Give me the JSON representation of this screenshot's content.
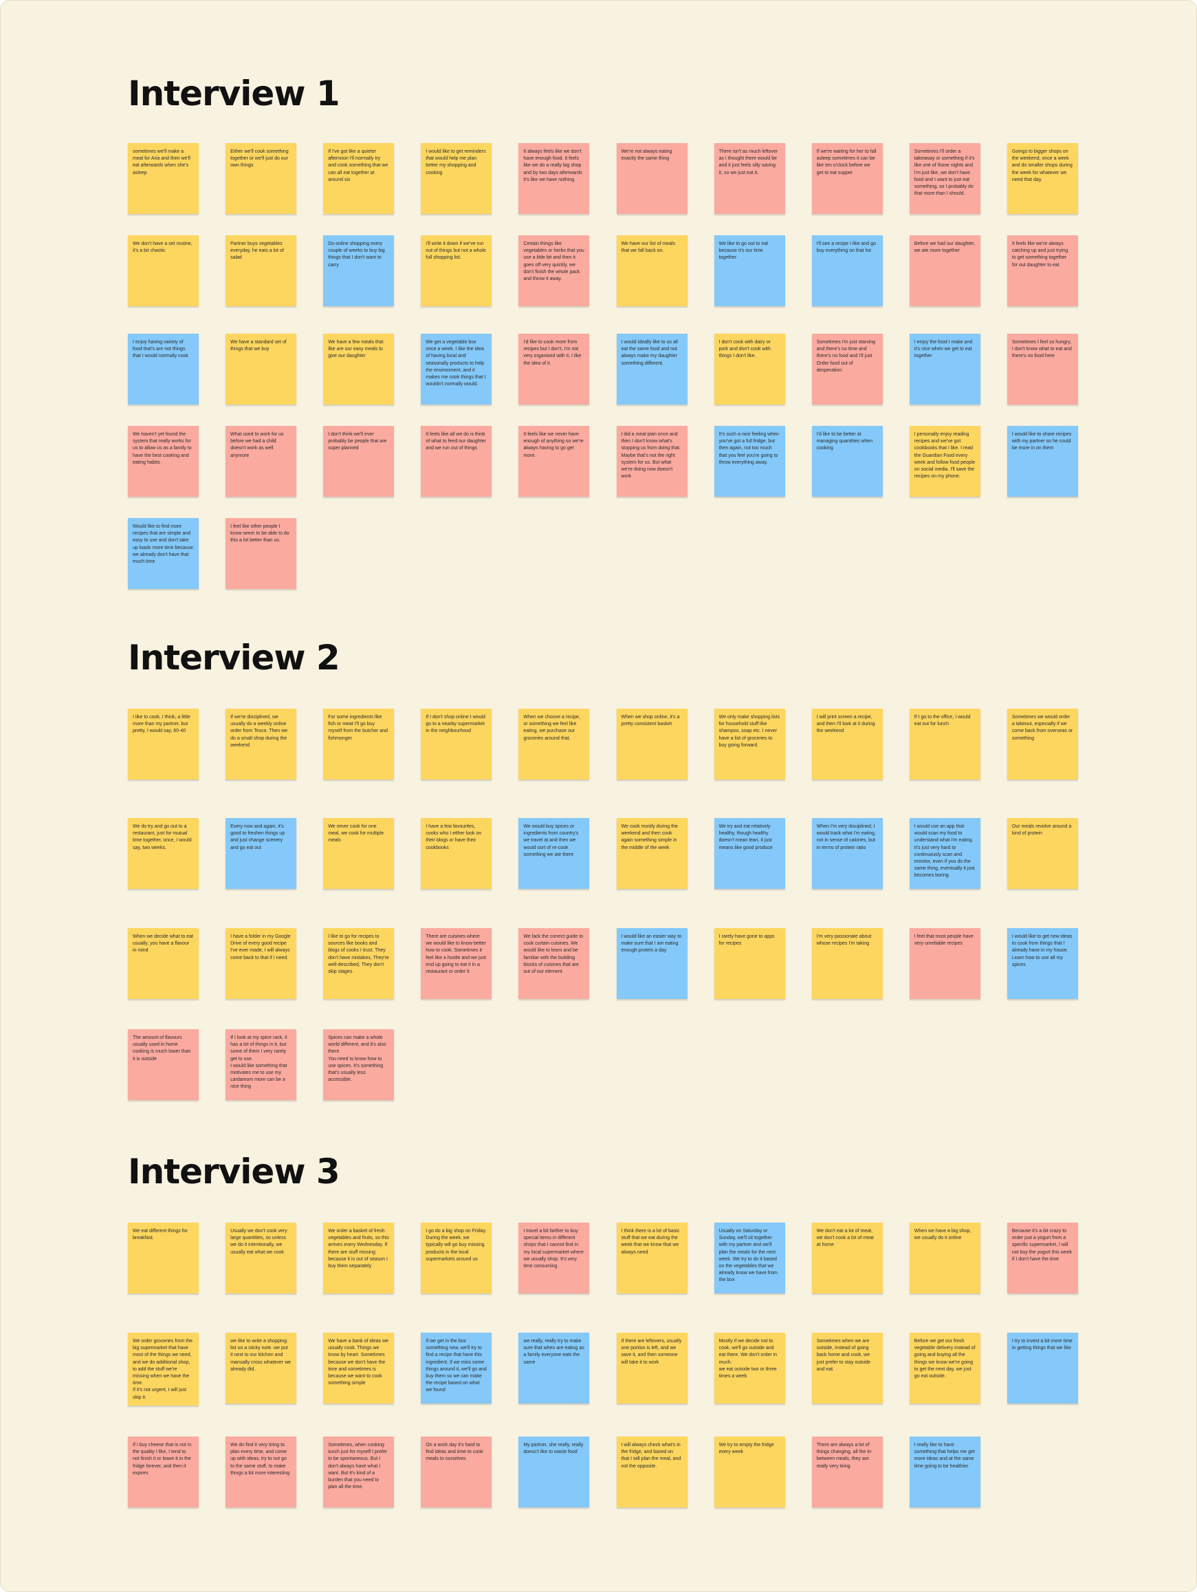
{
  "colors": {
    "board_background": "#f8f2e0",
    "yellow_note": "#fdd65f",
    "pink_note": "#fbaaa0",
    "blue_note": "#84c9f9"
  },
  "sections": [
    {
      "title": "Interview 1",
      "notes": [
        {
          "color": "yellow",
          "text": "sometimes we'll make a meal for Aria and then we'll eat afterwards when she's asleep"
        },
        {
          "color": "yellow",
          "text": "Either we'll cook something together or we'll just do our own things"
        },
        {
          "color": "yellow",
          "text": "If I've got like a quieter afternoon I'll normally try and cook something that we can all eat together at around six"
        },
        {
          "color": "yellow",
          "text": "I would like to get reminders that would help me plan better my shopping and cooking"
        },
        {
          "color": "pink",
          "text": "It always feels like we don't have enough food. It feels like we do a really big shop and by two days afterwards it's like we have nothing"
        },
        {
          "color": "pink",
          "text": "We're not always eating exactly the same thing"
        },
        {
          "color": "pink",
          "text": "There isn't as much leftover as I thought there would be and it just feels silly saving it, so we just eat it."
        },
        {
          "color": "pink",
          "text": "If we're waiting for her to fall asleep sometimes it can be like ten o'clock before we get to eat supper"
        },
        {
          "color": "pink",
          "text": "Sometimes I'll order a takeaway or something if it's like one of those nights and I'm just like, we don't have food and I want to just eat something, so I probably do that more than I should."
        },
        {
          "color": "yellow",
          "text": "Goings to bigger shops on the weekend, once a week and do smaller shops during the week for whatever we need that day."
        },
        {
          "color": "yellow",
          "text": "We don't have a set routine, it's a bit chaotic"
        },
        {
          "color": "yellow",
          "text": "Partner buys vegetables everyday, he eats a lot of salad"
        },
        {
          "color": "blue",
          "text": "Do online shopping every couple of weeks to buy big things that I don't want to carry"
        },
        {
          "color": "yellow",
          "text": "I'll write it down if we've run out of things but not a whole full shopping list."
        },
        {
          "color": "pink",
          "text": "Certain things like vegetables or herbs that you use a little bit and then it goes off very quickly, we don't finish the whole pack and throw it away."
        },
        {
          "color": "yellow",
          "text": "We have our list of meals that we fall back on."
        },
        {
          "color": "blue",
          "text": "We like to go out to eat because it's our time together"
        },
        {
          "color": "blue",
          "text": "I'll see a recipe I like and go buy everything on that list"
        },
        {
          "color": "pink",
          "text": "Before we had our daughter, we ate more together"
        },
        {
          "color": "pink",
          "text": "It feels like we're always catching up and just trying to get something together for out daughter to eat"
        },
        {
          "color": "blue",
          "text": "I enjoy having variety of food that's are not things that I would normally cook"
        },
        {
          "color": "yellow",
          "text": "We have a standard set of things that we buy"
        },
        {
          "color": "yellow",
          "text": "We have a few meals that like are our easy meals to give our daughter"
        },
        {
          "color": "blue",
          "text": "We get a vegetable box once a week. I like the idea of having local and seasonally products to help the environment, and it makes me cook things that I wouldn't normally would."
        },
        {
          "color": "pink",
          "text": "I'd like to cook more from recipes but I don't, I'm not very organised with it. I like the idea of it."
        },
        {
          "color": "blue",
          "text": "I would ideally like to us all eat the same food and not always make my daughter something different."
        },
        {
          "color": "yellow",
          "text": "I don't cook with dairy or pork and don't cook with things I don't like."
        },
        {
          "color": "pink",
          "text": "Sometimes I'm just starving and there's no time and there's no food and I'll just Order food out of desperation"
        },
        {
          "color": "blue",
          "text": "I enjoy the food I make and it's nice when we get to eat together"
        },
        {
          "color": "pink",
          "text": "Sometimes I feel so hungry, I don't know what to eat and there's no food here"
        },
        {
          "color": "pink",
          "text": "We haven't yet found the system that really works for us to allow us as a family to have the best cooking and eating habits"
        },
        {
          "color": "pink",
          "text": "What used to work for us before we had a child doesn't work as well anymore"
        },
        {
          "color": "pink",
          "text": "I don't think we'll ever probably be people that are super planned"
        },
        {
          "color": "pink",
          "text": "It feels like all we do is think of what to feed our daughter and we run out of things"
        },
        {
          "color": "pink",
          "text": "It feels like we never have enough of anything so we're always having to go get more."
        },
        {
          "color": "pink",
          "text": "I did a meal plan once and then I don't know what's stopping us from doing that. Maybe that's not the right system for us. But what we're doing now doesn't work"
        },
        {
          "color": "blue",
          "text": "It's such a nice feeling when you've got a full fridge, but then again, not too much that you feel you're going to throw everything away."
        },
        {
          "color": "blue",
          "text": "I'd like to be better at managing quantities when cooking"
        },
        {
          "color": "yellow",
          "text": "I personally enjoy reading recipes and we've got cookbooks that I like. I read the Guardian Food every week and follow food people on social media. I'll save the recipes on my phone."
        },
        {
          "color": "blue",
          "text": "I would like to share recipes with my partner so he could be more in on them"
        },
        {
          "color": "blue",
          "text": "Would like to find more recipes that are simple and easy to use and don't take up loads more time because we already don't have that much time"
        },
        {
          "color": "pink",
          "text": "I feel like other people I know seem to be able to do this a lot better than us."
        }
      ]
    },
    {
      "title": "Interview 2",
      "notes": [
        {
          "color": "yellow",
          "text": "I like to cook, I think, a little more than my partner, but pretty, I would say, 60-40"
        },
        {
          "color": "yellow",
          "text": "If we're disciplined, we usually do a weekly online order from Tesco. Then we do a small shop during the weekend"
        },
        {
          "color": "yellow",
          "text": "For some ingredients like fish or meat I'll go buy myself from the butcher and fishmonger"
        },
        {
          "color": "yellow",
          "text": "If I don't shop online I would go to a nearby supermarket in the neighbourhood"
        },
        {
          "color": "yellow",
          "text": "When we choose a recipe, or something we feel like eating, we purchase our groceries around that."
        },
        {
          "color": "yellow",
          "text": "When we shop online, it's a pretty consistent basket"
        },
        {
          "color": "yellow",
          "text": "We only make shopping lists for household stuff like shampoo, soap etc. I never have a list of groceries to buy going forward"
        },
        {
          "color": "yellow",
          "text": "I will print screen a recipe, and then I'll look at it during the weekend"
        },
        {
          "color": "yellow",
          "text": "If I go to the office, I would eat out for lunch"
        },
        {
          "color": "yellow",
          "text": "Sometimes we would order a takeout, especially if we come back from overseas or something"
        },
        {
          "color": "yellow",
          "text": "We do try and go out to a restaurant, just for mutual time together, once, I would say, two weeks."
        },
        {
          "color": "blue",
          "text": "Every now and again, it's good to freshen things up and just change scenery and go eat out"
        },
        {
          "color": "yellow",
          "text": "We never cook for one meal, we cook for multiple meals"
        },
        {
          "color": "yellow",
          "text": "I have a few favourites, cooks who I either look on their blogs or have their cookbooks"
        },
        {
          "color": "blue",
          "text": "We would buy spices or ingredients from country's we travel at and then we would sort of re-cook something we ate there"
        },
        {
          "color": "yellow",
          "text": "We cook mostly during the weekend and then cook again something simple in the middle of the week"
        },
        {
          "color": "blue",
          "text": "We try and eat relatively healthy, though healthy doesn't mean lean, it just means like good produce"
        },
        {
          "color": "blue",
          "text": "When I'm very disciplined, I would track what I'm eating, not in sense of calories, but in terms of protein ratio"
        },
        {
          "color": "blue",
          "text": "I would use an app that would scan my food to understand what I'm eating.\nIt's just very hard to continuously scan and monitor, even if you do the same thing, eventually it just becomes boring."
        },
        {
          "color": "yellow",
          "text": "Our meals revolve around a kind of protein"
        },
        {
          "color": "yellow",
          "text": "When we decide what to eat usually, you have a flavour in mind"
        },
        {
          "color": "yellow",
          "text": "I have a folder in my Google Drive of every good recipe I've ever made, I will always come back to that if I need."
        },
        {
          "color": "yellow",
          "text": "I like to go for recipes to sources like books and blogs of cooks I trust. They don't have mistakes, They're well-described, They don't skip stages."
        },
        {
          "color": "pink",
          "text": "There are cuisines where we would like to know better how to cook. Sometimes it feel like a hustle and we just end up going to eat it in a restaurant or order it"
        },
        {
          "color": "pink",
          "text": "We lack the correct guide to cook curtain cuisines. We would like to learn and be familiar with the building blocks of cuisines that are out of our element"
        },
        {
          "color": "blue",
          "text": "I would like an easier way to make sure that I am eating enough protein a day"
        },
        {
          "color": "yellow",
          "text": "I rarely have gone to apps for recipes"
        },
        {
          "color": "yellow",
          "text": "I'm very passionate about whose recipes I'm taking"
        },
        {
          "color": "pink",
          "text": "I feel that most people have very unreliable recipes"
        },
        {
          "color": "blue",
          "text": "I would like to get new ideas to cook from things that I already have in my house. Learn how to use all my spices"
        },
        {
          "color": "pink",
          "text": "The amount of flavours usually used in home cooking is much lower than it is outside"
        },
        {
          "color": "pink",
          "text": "If I look at my spice rack, it has a lot of things in it, but some of them I very rarely get to use.\nI would like something that motivates me to use my cardamom more can be a nice thing"
        },
        {
          "color": "pink",
          "text": "Spices can make a whole world different, and it's also there.\nYou need to know how to use spices. It's something that's usually less accessible."
        }
      ]
    },
    {
      "title": "Interview 3",
      "notes": [
        {
          "color": "yellow",
          "text": "We eat different things for breakfast."
        },
        {
          "color": "yellow",
          "text": "Usually we don't cook very large quantities, so unless we do it intentionally, we usually eat what we cook"
        },
        {
          "color": "yellow",
          "text": "We order a basket of fresh vegetables and fruits, so this arrives every Wednesday. If there are stuff missing because it is out of season I buy them separately"
        },
        {
          "color": "yellow",
          "text": "I go do a big shop on Friday. During the week, we typically will go buy missing products in the local supermarkets around us"
        },
        {
          "color": "pink",
          "text": "I travel a bit farther to buy special items in different shops that I cannot find in my local supermarket where we usually shop. It's very time consuming"
        },
        {
          "color": "yellow",
          "text": "I think there is a lot of basic stuff that we eat during the week that we know that we always need"
        },
        {
          "color": "blue",
          "text": "Usually on Saturday or Sunday, we'll sit together with my partner and we'll plan the meals for the next week. We try to do it based on the vegetables that we already know we have from the box"
        },
        {
          "color": "yellow",
          "text": "We don't eat a lot of meat, we don't cook a lot of meat at home"
        },
        {
          "color": "yellow",
          "text": "When we have a big shop, we usually do it online"
        },
        {
          "color": "pink",
          "text": "Because it's a bit crazy to order just a yogurt from a specific supermarket, I will not buy the yogurt this week if I don't have the time"
        },
        {
          "color": "yellow",
          "text": "We order groceries from the big supermarket that have most of the things we need, and we do additional shop, to add the stuff we're missing when we have the time.\nIf it's not urgent, I will just skip it."
        },
        {
          "color": "yellow",
          "text": "we like to write a shopping list on a sticky note. we put it next to our kitchen and manually cross whatever we already did."
        },
        {
          "color": "yellow",
          "text": "We have a bank of ideas we usually cook. Things we know by heart. Sometimes because we don't have the time and sometimes is because we want to cook something simple"
        },
        {
          "color": "blue",
          "text": "If we get in the box something new, we'll try to find a recipe that have this ingredient. If we miss some things around it, we'll go and buy them so we can make the recipe based on what we found"
        },
        {
          "color": "blue",
          "text": "we really, really try to make sure that when are eating as a family everyone eats the same"
        },
        {
          "color": "yellow",
          "text": "If there are leftovers, usually one portion is left, and we save it, and then someone will take it to work"
        },
        {
          "color": "yellow",
          "text": "Mostly if we decide not to cook, we'll go outside and eat there. We don't order in much.\nwe eat outside two or three times a week"
        },
        {
          "color": "yellow",
          "text": "Sometimes when we are outside, instead of going back home and cook, we just prefer to stay outside and eat."
        },
        {
          "color": "yellow",
          "text": "Before we get our fresh vegetable delivery instead of going and buying all the things we know we're going to get the next day, we just go eat outside."
        },
        {
          "color": "blue",
          "text": "I try to invest a bit more time in getting things that we like"
        },
        {
          "color": "pink",
          "text": "If I buy cheese that is not in the quality I like, I tend to not finish it or leave it in the fridge forever, and then it expires"
        },
        {
          "color": "pink",
          "text": "We do find it very tiring to plan every time, and come up with ideas, try to not go to the same stuff, to make things a bit more interesting"
        },
        {
          "color": "pink",
          "text": "Sometimes, when cooking lunch just for myself I prefer to be spontaneous. But I don't always have what I want. But it's kind of a burden that you need to plan all the time."
        },
        {
          "color": "pink",
          "text": "On a work day it's hard to find ideas and time to cook meals to ourselves"
        },
        {
          "color": "blue",
          "text": "My partner, she really, really doesn't like to waste food"
        },
        {
          "color": "yellow",
          "text": "I will always check what's in the fridge, and based on that I will plan the meal, and not the opposite."
        },
        {
          "color": "yellow",
          "text": "We try to empty the fridge every week"
        },
        {
          "color": "pink",
          "text": "There are always a lot of things changing, all the in-between meals, they are really very tiring"
        },
        {
          "color": "blue",
          "text": "I really like to have something that helps me get more ideas and at the same time going to be healthier"
        }
      ]
    }
  ]
}
